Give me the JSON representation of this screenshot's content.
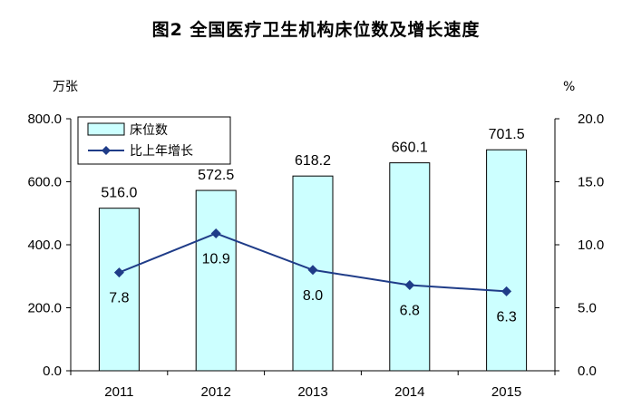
{
  "title": "图2  全国医疗卫生机构床位数及增长速度",
  "chart_data": {
    "type": "bar",
    "categories": [
      "2011",
      "2012",
      "2013",
      "2014",
      "2015"
    ],
    "series": [
      {
        "name": "床位数",
        "type": "bar",
        "axis": "left",
        "values": [
          516.0,
          572.5,
          618.2,
          660.1,
          701.5
        ],
        "labels": [
          "516.0",
          "572.5",
          "618.2",
          "660.1",
          "701.5"
        ]
      },
      {
        "name": "比上年增长",
        "type": "line",
        "axis": "right",
        "values": [
          7.8,
          10.9,
          8.0,
          6.8,
          6.3
        ],
        "labels": [
          "7.8",
          "10.9",
          "8.0",
          "6.8",
          "6.3"
        ]
      }
    ],
    "y_left": {
      "unit": "万张",
      "range": [
        0,
        800
      ],
      "ticks": [
        "0.0",
        "200.0",
        "400.0",
        "600.0",
        "800.0"
      ]
    },
    "y_right": {
      "unit": "%",
      "range": [
        0,
        20
      ],
      "ticks": [
        "0.0",
        "5.0",
        "10.0",
        "15.0",
        "20.0"
      ]
    },
    "grid": false,
    "legend_position": "top-left",
    "colors": {
      "bar_fill": "#ccffff",
      "bar_stroke": "#000000",
      "line": "#1f3c88"
    }
  }
}
